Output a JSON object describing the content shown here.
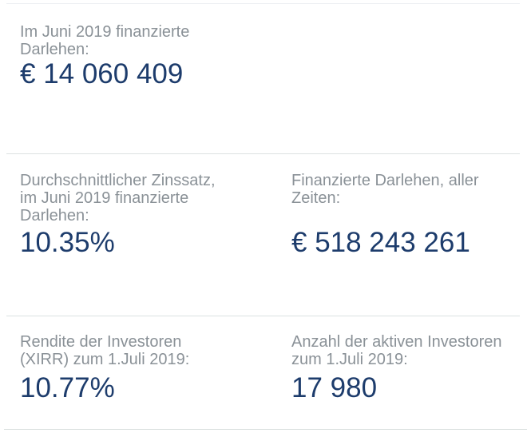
{
  "colors": {
    "background": "#ffffff",
    "label": "#8a9197",
    "value": "#1d3c6c",
    "divider": "#dce2e1",
    "divider_top": "#edeff2"
  },
  "stats": {
    "funded_june": {
      "label": "Im Juni 2019 finanzierte\nDarlehen:",
      "value": "€ 14 060 409"
    },
    "avg_interest": {
      "label": "Durchschnittlicher Zinssatz,\nim Juni 2019 finanzierte\nDarlehen:",
      "value": "10.35%"
    },
    "funded_all_time": {
      "label": "Finanzierte Darlehen, aller\nZeiten:",
      "value": "€ 518 243 261"
    },
    "investor_return": {
      "label": "Rendite der Investoren\n(XIRR) zum 1.Juli 2019:",
      "value": "10.77%"
    },
    "active_investors": {
      "label": "Anzahl der aktiven Investoren\nzum 1.Juli 2019:",
      "value": "17 980"
    }
  }
}
